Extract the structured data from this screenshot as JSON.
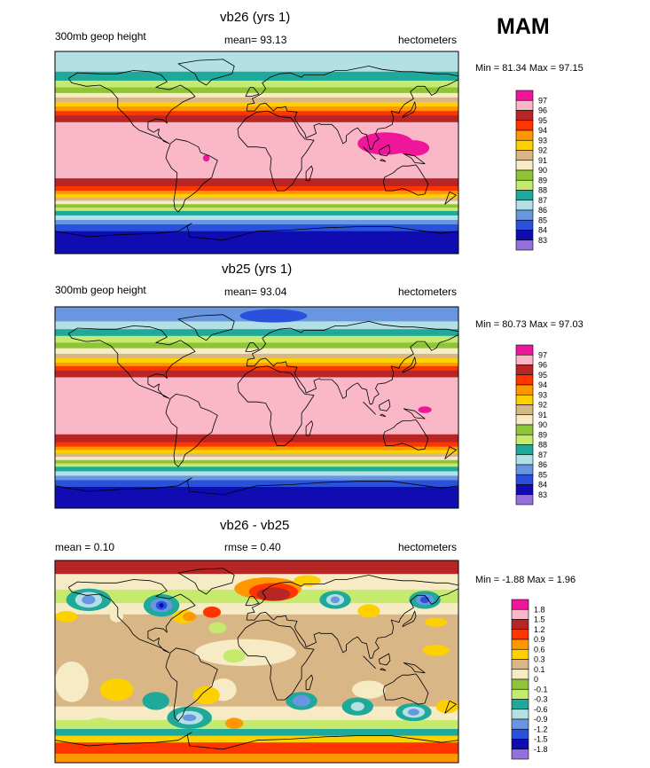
{
  "season": "MAM",
  "chart_data": [
    {
      "type": "heatmap",
      "title": "vb26 (yrs 1)",
      "left_label": "300mb geop height",
      "mean_label": "mean=  93.13",
      "units": "hectometers",
      "min": 81.34,
      "max": 97.15,
      "minmax_label": "Min =  81.34 Max =  97.15",
      "legend_levels": [
        "97",
        "96",
        "95",
        "94",
        "93",
        "92",
        "91",
        "90",
        "89",
        "88",
        "87",
        "86",
        "85",
        "84",
        "83"
      ],
      "legend_colors": [
        "#f0169a",
        "#f9b7c7",
        "#b82525",
        "#ff3500",
        "#ff9800",
        "#fdd000",
        "#d9b686",
        "#f6ebc4",
        "#8fc338",
        "#c6ea6e",
        "#1ea99a",
        "#b3e0e4",
        "#6996e0",
        "#2951dc",
        "#0f0cb2",
        "#9370db"
      ],
      "bands": [
        {
          "lat_top": 90,
          "lat_bot": 72,
          "value": 86
        },
        {
          "lat_top": 72,
          "lat_bot": 64,
          "value": 87
        },
        {
          "lat_top": 64,
          "lat_bot": 58,
          "value": 88
        },
        {
          "lat_top": 58,
          "lat_bot": 53,
          "value": 89
        },
        {
          "lat_top": 53,
          "lat_bot": 49,
          "value": 90
        },
        {
          "lat_top": 49,
          "lat_bot": 45,
          "value": 91
        },
        {
          "lat_top": 45,
          "lat_bot": 41,
          "value": 92
        },
        {
          "lat_top": 41,
          "lat_bot": 37,
          "value": 93
        },
        {
          "lat_top": 37,
          "lat_bot": 33,
          "value": 94
        },
        {
          "lat_top": 33,
          "lat_bot": 27,
          "value": 95
        },
        {
          "lat_top": 27,
          "lat_bot": -23,
          "value": 96
        },
        {
          "lat_top": -23,
          "lat_bot": -30,
          "value": 95
        },
        {
          "lat_top": -30,
          "lat_bot": -34,
          "value": 94
        },
        {
          "lat_top": -34,
          "lat_bot": -37,
          "value": 93
        },
        {
          "lat_top": -37,
          "lat_bot": -40,
          "value": 92
        },
        {
          "lat_top": -40,
          "lat_bot": -43,
          "value": 91
        },
        {
          "lat_top": -43,
          "lat_bot": -46,
          "value": 90
        },
        {
          "lat_top": -46,
          "lat_bot": -49,
          "value": 89
        },
        {
          "lat_top": -49,
          "lat_bot": -52,
          "value": 88
        },
        {
          "lat_top": -52,
          "lat_bot": -56,
          "value": 87
        },
        {
          "lat_top": -56,
          "lat_bot": -60,
          "value": 86
        },
        {
          "lat_top": -60,
          "lat_bot": -64,
          "value": 85
        },
        {
          "lat_top": -64,
          "lat_bot": -70,
          "value": 84
        },
        {
          "lat_top": -70,
          "lat_bot": -90,
          "value": 83
        }
      ],
      "blobs": [
        {
          "lon": 115,
          "lat": 8,
          "rlon": 25,
          "rlat": 10,
          "value": 97
        },
        {
          "lon": 140,
          "lat": 4,
          "rlon": 14,
          "rlat": 7,
          "value": 97
        },
        {
          "lon": -45,
          "lat": -5,
          "rlon": 3,
          "rlat": 3,
          "value": 97
        }
      ]
    },
    {
      "type": "heatmap",
      "title": "vb25 (yrs 1)",
      "left_label": "300mb geop height",
      "mean_label": "mean=  93.04",
      "units": "hectometers",
      "min": 80.73,
      "max": 97.03,
      "minmax_label": "Min =  80.73 Max =  97.03",
      "legend_levels": [
        "97",
        "96",
        "95",
        "94",
        "93",
        "92",
        "91",
        "90",
        "89",
        "88",
        "87",
        "86",
        "85",
        "84",
        "83"
      ],
      "legend_colors": [
        "#f0169a",
        "#f9b7c7",
        "#b82525",
        "#ff3500",
        "#ff9800",
        "#fdd000",
        "#d9b686",
        "#f6ebc4",
        "#8fc338",
        "#c6ea6e",
        "#1ea99a",
        "#b3e0e4",
        "#6996e0",
        "#2951dc",
        "#0f0cb2",
        "#9370db"
      ],
      "bands": [
        {
          "lat_top": 90,
          "lat_bot": 77,
          "value": 85
        },
        {
          "lat_top": 77,
          "lat_bot": 70,
          "value": 86
        },
        {
          "lat_top": 70,
          "lat_bot": 64,
          "value": 87
        },
        {
          "lat_top": 64,
          "lat_bot": 58,
          "value": 88
        },
        {
          "lat_top": 58,
          "lat_bot": 53,
          "value": 89
        },
        {
          "lat_top": 53,
          "lat_bot": 48,
          "value": 90
        },
        {
          "lat_top": 48,
          "lat_bot": 44,
          "value": 91
        },
        {
          "lat_top": 44,
          "lat_bot": 40,
          "value": 92
        },
        {
          "lat_top": 40,
          "lat_bot": 37,
          "value": 93
        },
        {
          "lat_top": 37,
          "lat_bot": 33,
          "value": 94
        },
        {
          "lat_top": 33,
          "lat_bot": 27,
          "value": 95
        },
        {
          "lat_top": 27,
          "lat_bot": -24,
          "value": 96
        },
        {
          "lat_top": -24,
          "lat_bot": -31,
          "value": 95
        },
        {
          "lat_top": -31,
          "lat_bot": -35,
          "value": 94
        },
        {
          "lat_top": -35,
          "lat_bot": -38,
          "value": 93
        },
        {
          "lat_top": -38,
          "lat_bot": -41,
          "value": 92
        },
        {
          "lat_top": -41,
          "lat_bot": -44,
          "value": 91
        },
        {
          "lat_top": -44,
          "lat_bot": -47,
          "value": 90
        },
        {
          "lat_top": -47,
          "lat_bot": -50,
          "value": 89
        },
        {
          "lat_top": -50,
          "lat_bot": -53,
          "value": 88
        },
        {
          "lat_top": -53,
          "lat_bot": -57,
          "value": 87
        },
        {
          "lat_top": -57,
          "lat_bot": -61,
          "value": 86
        },
        {
          "lat_top": -61,
          "lat_bot": -65,
          "value": 85
        },
        {
          "lat_top": -65,
          "lat_bot": -71,
          "value": 84
        },
        {
          "lat_top": -71,
          "lat_bot": -90,
          "value": 83
        }
      ],
      "blobs": [
        {
          "lon": 150,
          "lat": -2,
          "rlon": 6,
          "rlat": 3,
          "value": 97
        },
        {
          "lon": 15,
          "lat": 82,
          "rlon": 30,
          "rlat": 6,
          "value": 84
        }
      ]
    },
    {
      "type": "heatmap",
      "title": "vb26 - vb25",
      "left_label": "mean =   0.10",
      "mean_label": "rmse =   0.40",
      "units": "hectometers",
      "min": -1.88,
      "max": 1.96,
      "minmax_label": "Min =  -1.88 Max =   1.96",
      "legend_levels": [
        "1.8",
        "1.5",
        "1.2",
        "0.9",
        "0.6",
        "0.3",
        "0.1",
        "0",
        "-0.1",
        "-0.3",
        "-0.6",
        "-0.9",
        "-1.2",
        "-1.5",
        "-1.8"
      ],
      "legend_colors": [
        "#f0169a",
        "#f9b7c7",
        "#b82525",
        "#ff3500",
        "#ff9800",
        "#fdd000",
        "#d9b686",
        "#f6ebc4",
        "#8fc338",
        "#c6ea6e",
        "#1ea99a",
        "#b3e0e4",
        "#6996e0",
        "#2951dc",
        "#0f0cb2",
        "#9370db"
      ],
      "bands": [
        {
          "lat_top": 90,
          "lat_bot": 78,
          "value": 1.3
        },
        {
          "lat_top": 78,
          "lat_bot": 64,
          "value": 0.0
        },
        {
          "lat_top": 64,
          "lat_bot": 52,
          "value": -0.2
        },
        {
          "lat_top": 52,
          "lat_bot": 42,
          "value": 0.0
        },
        {
          "lat_top": 42,
          "lat_bot": -40,
          "value": 0.2
        },
        {
          "lat_top": -40,
          "lat_bot": -52,
          "value": 0.0
        },
        {
          "lat_top": -52,
          "lat_bot": -60,
          "value": -0.2
        },
        {
          "lat_top": -60,
          "lat_bot": -66,
          "value": -0.4
        },
        {
          "lat_top": -66,
          "lat_bot": -72,
          "value": 0.5
        },
        {
          "lat_top": -72,
          "lat_bot": -82,
          "value": 1.0
        },
        {
          "lat_top": -82,
          "lat_bot": -90,
          "value": 0.7
        }
      ],
      "blobs": [
        {
          "lon": -10,
          "lat": 8,
          "rlon": 45,
          "rlat": 12,
          "value": 0.0
        },
        {
          "lon": -165,
          "lat": -18,
          "rlon": 15,
          "rlat": 18,
          "value": 0.0
        },
        {
          "lon": -30,
          "lat": -25,
          "rlon": 12,
          "rlat": 10,
          "value": 0.0
        },
        {
          "lon": 100,
          "lat": -25,
          "rlon": 15,
          "rlat": 8,
          "value": 0.0
        },
        {
          "lon": -150,
          "lat": 55,
          "rlon": 20,
          "rlat": 10,
          "value": -0.5
        },
        {
          "lon": -150,
          "lat": 55,
          "rlon": 12,
          "rlat": 7,
          "value": -0.8
        },
        {
          "lon": -150,
          "lat": 55,
          "rlon": 6,
          "rlat": 4,
          "value": -1.0
        },
        {
          "lon": -125,
          "lat": 40,
          "rlon": 6,
          "rlat": 5,
          "value": 0.0
        },
        {
          "lon": -85,
          "lat": 50,
          "rlon": 16,
          "rlat": 10,
          "value": -0.5
        },
        {
          "lon": -85,
          "lat": 50,
          "rlon": 10,
          "rlat": 6,
          "value": -1.0
        },
        {
          "lon": -85,
          "lat": 50,
          "rlon": 5,
          "rlat": 4,
          "value": -1.4
        },
        {
          "lon": -85,
          "lat": 50,
          "rlon": 2,
          "rlat": 2,
          "value": -1.7
        },
        {
          "lon": -65,
          "lat": 40,
          "rlon": 10,
          "rlat": 6,
          "value": 0.4
        },
        {
          "lon": -60,
          "lat": 40,
          "rlon": 6,
          "rlat": 4,
          "value": 0.7
        },
        {
          "lon": -40,
          "lat": 44,
          "rlon": 8,
          "rlat": 5,
          "value": 1.0
        },
        {
          "lon": -35,
          "lat": 30,
          "rlon": 8,
          "rlat": 5,
          "value": -0.2
        },
        {
          "lon": 10,
          "lat": 65,
          "rlon": 30,
          "rlat": 10,
          "value": 0.7
        },
        {
          "lon": 15,
          "lat": 62,
          "rlon": 22,
          "rlat": 8,
          "value": 1.0
        },
        {
          "lon": 15,
          "lat": 60,
          "rlon": 15,
          "rlat": 6,
          "value": 1.2
        },
        {
          "lon": 45,
          "lat": 72,
          "rlon": 12,
          "rlat": 5,
          "value": 0.4
        },
        {
          "lon": 70,
          "lat": 55,
          "rlon": 14,
          "rlat": 8,
          "value": -0.5
        },
        {
          "lon": 70,
          "lat": 55,
          "rlon": 8,
          "rlat": 5,
          "value": -0.8
        },
        {
          "lon": 70,
          "lat": 55,
          "rlon": 4,
          "rlat": 3,
          "value": -1.0
        },
        {
          "lon": 100,
          "lat": 45,
          "rlon": 10,
          "rlat": 6,
          "value": 0.3
        },
        {
          "lon": 120,
          "lat": 35,
          "rlon": 8,
          "rlat": 5,
          "value": 0.1
        },
        {
          "lon": 150,
          "lat": 55,
          "rlon": 14,
          "rlat": 8,
          "value": -0.5
        },
        {
          "lon": 150,
          "lat": 55,
          "rlon": 8,
          "rlat": 5,
          "value": -1.0
        },
        {
          "lon": 150,
          "lat": 55,
          "rlon": 4,
          "rlat": 3,
          "value": -1.3
        },
        {
          "lon": 160,
          "lat": 35,
          "rlon": 10,
          "rlat": 4,
          "value": 0.3
        },
        {
          "lon": -170,
          "lat": 40,
          "rlon": 10,
          "rlat": 5,
          "value": 0.5
        },
        {
          "lon": -45,
          "lat": -30,
          "rlon": 12,
          "rlat": 8,
          "value": 0.5
        },
        {
          "lon": -90,
          "lat": -35,
          "rlon": 12,
          "rlat": 8,
          "value": -0.4
        },
        {
          "lon": -60,
          "lat": -50,
          "rlon": 20,
          "rlat": 10,
          "value": -0.6
        },
        {
          "lon": -60,
          "lat": -50,
          "rlon": 12,
          "rlat": 6,
          "value": -0.9
        },
        {
          "lon": -60,
          "lat": -50,
          "rlon": 6,
          "rlat": 3,
          "value": -1.2
        },
        {
          "lon": -125,
          "lat": -25,
          "rlon": 15,
          "rlat": 10,
          "value": 0.4
        },
        {
          "lon": -20,
          "lat": -55,
          "rlon": 8,
          "rlat": 5,
          "value": 0.6
        },
        {
          "lon": 40,
          "lat": -35,
          "rlon": 14,
          "rlat": 8,
          "value": -0.6
        },
        {
          "lon": 40,
          "lat": -35,
          "rlon": 8,
          "rlat": 5,
          "value": -1.0
        },
        {
          "lon": 90,
          "lat": -40,
          "rlon": 14,
          "rlat": 8,
          "value": -0.5
        },
        {
          "lon": 90,
          "lat": -40,
          "rlon": 6,
          "rlat": 4,
          "value": -0.8
        },
        {
          "lon": 140,
          "lat": -45,
          "rlon": 16,
          "rlat": 8,
          "value": -0.5
        },
        {
          "lon": 140,
          "lat": -45,
          "rlon": 10,
          "rlat": 5,
          "value": -0.8
        },
        {
          "lon": 140,
          "lat": -45,
          "rlon": 5,
          "rlat": 3,
          "value": -1.0
        },
        {
          "lon": 170,
          "lat": -40,
          "rlon": 10,
          "rlat": 6,
          "value": 0.4
        },
        {
          "lon": -20,
          "lat": 5,
          "rlon": 10,
          "rlat": 6,
          "value": -0.2
        },
        {
          "lon": 160,
          "lat": 10,
          "rlon": 12,
          "rlat": 5,
          "value": 0.3
        },
        {
          "lon": -140,
          "lat": -55,
          "rlon": 12,
          "rlat": 5,
          "value": -0.2
        }
      ]
    }
  ]
}
